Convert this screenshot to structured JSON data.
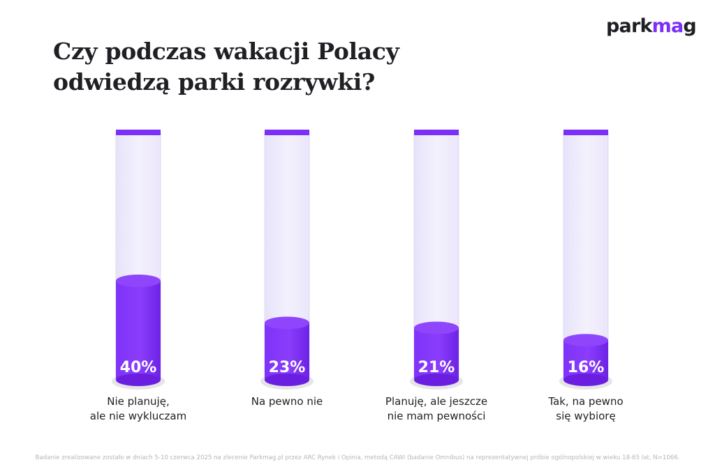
{
  "title_lines": [
    "Czy podczas wakacji Polacy",
    "odwiedzą parki rozrywki?"
  ],
  "logo": {
    "main": "park",
    "accent": "ma",
    "end": "g"
  },
  "chart_data": {
    "type": "bar",
    "title": "Czy podczas wakacji Polacy odwiedzą parki rozrywki?",
    "categories": [
      [
        "Nie planuję,",
        "ale nie wykluczam"
      ],
      [
        "Na pewno nie"
      ],
      [
        "Planuję, ale jeszcze",
        "nie mam pewności"
      ],
      [
        "Tak, na pewno",
        "się wybiorę"
      ]
    ],
    "values": [
      40,
      23,
      21,
      16
    ],
    "value_labels": [
      "40%",
      "23%",
      "21%",
      "16%"
    ],
    "ylim": [
      0,
      100
    ],
    "grid": false,
    "colors": {
      "fill": "#7b2ff7",
      "fill_dark": "#6a1fe0",
      "tube": "#ece9fb",
      "cap": "#7b2ff7"
    }
  },
  "footnote": "Badanie zrealizowane zostało w dniach 5-10 czerwca 2025 na zlecenie Parkmag.pl przez ARC Rynek i Opinia, metodą CAWI (badanie Omnibus) na reprezentatywnej próbie ogólnopolskiej w wieku 18-65 lat, N=1066."
}
